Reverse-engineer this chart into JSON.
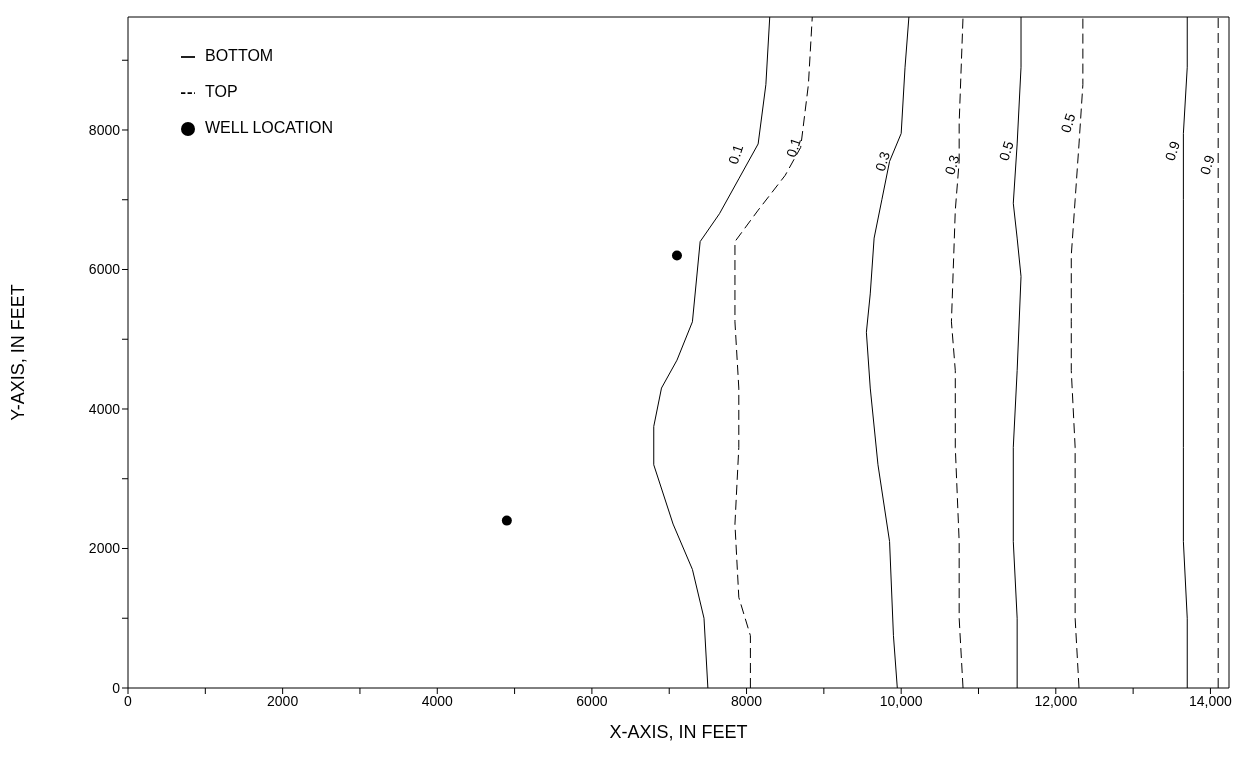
{
  "chart_data": {
    "type": "line",
    "xlabel": "X-AXIS, IN FEET",
    "ylabel": "Y-AXIS, IN FEET",
    "xlim": [
      0,
      14240
    ],
    "ylim": [
      0,
      9620
    ],
    "xticks": [
      0,
      {
        "value": 1000,
        "label": null
      },
      2000,
      {
        "value": 3000,
        "label": null
      },
      4000,
      {
        "value": 5000,
        "label": null
      },
      6000,
      {
        "value": 7000,
        "label": null
      },
      8000,
      {
        "value": 9000,
        "label": null
      },
      {
        "value": 10000,
        "label": "10,000"
      },
      {
        "value": 11000,
        "label": null
      },
      {
        "value": 12000,
        "label": "12,000"
      },
      {
        "value": 13000,
        "label": null
      },
      {
        "value": 14000,
        "label": "14,000"
      }
    ],
    "yticks": [
      0,
      {
        "value": 1000,
        "label": null
      },
      2000,
      {
        "value": 3000,
        "label": null
      },
      4000,
      {
        "value": 5000,
        "label": null
      },
      6000,
      {
        "value": 7000,
        "label": null
      },
      8000,
      {
        "value": 9000,
        "label": null
      }
    ],
    "grid": false,
    "legend": "top left",
    "marker": "none",
    "series": [
      {
        "name": "BOTTOM",
        "color": "#000000",
        "line_style": "solid",
        "x": [
          7500,
          7450,
          7300,
          7050,
          6800,
          6800,
          6900,
          7100,
          7300,
          7400,
          7650,
          7900,
          8150,
          8250,
          8300
        ],
        "values": [
          0,
          1000,
          1700,
          2350,
          3200,
          3750,
          4300,
          4700,
          5250,
          6400,
          6800,
          7300,
          7800,
          8650,
          9620
        ]
      },
      {
        "name": "TOP",
        "color": "#000000",
        "line_style": "dashed",
        "x": [
          8050,
          8050,
          7900,
          7850,
          7900,
          7900,
          7850,
          7850,
          7850,
          8150,
          8500,
          8700,
          8800,
          8850
        ],
        "values": [
          0,
          750,
          1300,
          2350,
          3450,
          4300,
          5250,
          5850,
          6400,
          6850,
          7350,
          7750,
          8650,
          9620
        ]
      },
      {
        "color": "#000000",
        "line_style": "solid",
        "x": [
          9950,
          9900,
          9850,
          9700,
          9600,
          9550,
          9600,
          9650,
          9750,
          9850,
          10000,
          10050,
          10100
        ],
        "values": [
          0,
          750,
          2100,
          3200,
          4300,
          5100,
          5650,
          6450,
          7000,
          7550,
          7950,
          8900,
          9620
        ]
      },
      {
        "color": "#000000",
        "line_style": "dashed",
        "x": [
          10800,
          10750,
          10750,
          10700,
          10700,
          10650,
          10700,
          10750,
          10750,
          10800
        ],
        "values": [
          0,
          1000,
          2100,
          3450,
          4550,
          5250,
          6850,
          7550,
          8100,
          9620
        ]
      },
      {
        "color": "#000000",
        "line_style": "solid",
        "x": [
          11500,
          11500,
          11450,
          11450,
          11500,
          11550,
          11500,
          11450,
          11500,
          11550,
          11550
        ],
        "values": [
          0,
          1000,
          2100,
          3450,
          4550,
          5900,
          6450,
          6950,
          7800,
          8900,
          9620
        ]
      },
      {
        "color": "#000000",
        "line_style": "dashed",
        "x": [
          12300,
          12250,
          12250,
          12250,
          12200,
          12200,
          12200,
          12250,
          12300,
          12350,
          12350
        ],
        "values": [
          0,
          1000,
          2100,
          3450,
          4550,
          5250,
          6200,
          7000,
          7800,
          8650,
          9620
        ]
      },
      {
        "color": "#000000",
        "line_style": "solid",
        "x": [
          13700,
          13700,
          13650,
          13650,
          13650,
          13650,
          13650,
          13650,
          13700,
          13700
        ],
        "values": [
          0,
          1000,
          2100,
          3450,
          4550,
          5650,
          7000,
          7950,
          8900,
          9620
        ]
      },
      {
        "color": "#000000",
        "line_style": "dashed",
        "x": [
          14100,
          14100
        ],
        "values": [
          0,
          9620
        ]
      },
      {
        "name": "WELL LOCATION",
        "type": "scatter",
        "color": "#000000",
        "marker": "circle",
        "x": [
          4900,
          7100
        ],
        "values": [
          2400,
          6200
        ]
      }
    ],
    "annotations": [
      {
        "text": "0.1",
        "x": 8000,
        "y": 7650
      },
      {
        "text": "0.1",
        "x": 8750,
        "y": 7750
      },
      {
        "text": "0.3",
        "x": 9900,
        "y": 7550
      },
      {
        "text": "0.3",
        "x": 10800,
        "y": 7500
      },
      {
        "text": "0.5",
        "x": 11500,
        "y": 7700
      },
      {
        "text": "0.5",
        "x": 12300,
        "y": 8100
      },
      {
        "text": "0.9",
        "x": 13650,
        "y": 7700
      },
      {
        "text": "0.9",
        "x": 14100,
        "y": 7500
      }
    ]
  }
}
